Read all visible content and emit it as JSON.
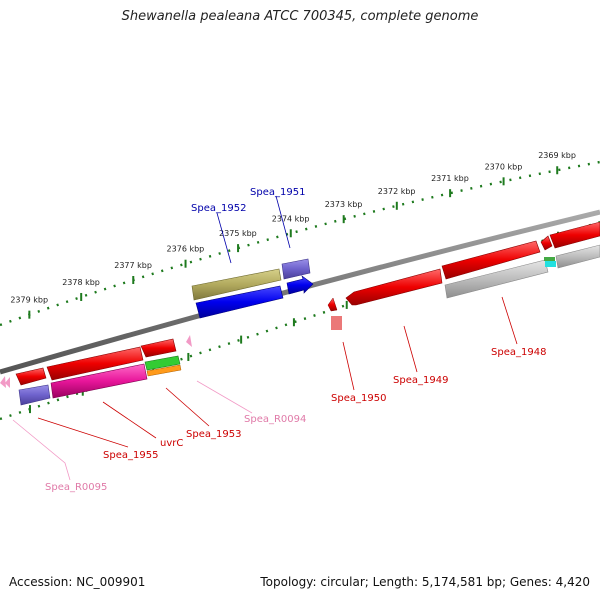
{
  "title": "Shewanella pealeana ATCC 700345, complete genome",
  "footer": {
    "accession": "Accession: NC_009901",
    "summary": "Topology: circular; Length: 5,174,581 bp; Genes: 4,420"
  },
  "scale": {
    "ticks": [
      "2369 kbp",
      "2370 kbp",
      "2371 kbp",
      "2372 kbp",
      "2373 kbp",
      "2374 kbp",
      "2375 kbp",
      "2376 kbp",
      "2377 kbp",
      "2378 kbp",
      "2379 kbp"
    ]
  },
  "features": [
    {
      "id": "Spea_1948",
      "label": "Spea_1948",
      "color": "#cc0000"
    },
    {
      "id": "Spea_1949",
      "label": "Spea_1949",
      "color": "#cc0000"
    },
    {
      "id": "Spea_1950",
      "label": "Spea_1950",
      "color": "#cc0000"
    },
    {
      "id": "Spea_1951",
      "label": "Spea_1951",
      "color": "#0000aa"
    },
    {
      "id": "Spea_1952",
      "label": "Spea_1952",
      "color": "#0000aa"
    },
    {
      "id": "Spea_1953",
      "label": "Spea_1953",
      "color": "#cc0000"
    },
    {
      "id": "uvrC",
      "label": "uvrC",
      "color": "#cc0000"
    },
    {
      "id": "Spea_1955",
      "label": "Spea_1955",
      "color": "#cc0000"
    },
    {
      "id": "Spea_R0094",
      "label": "Spea_R0094",
      "color": "#e07aa8"
    },
    {
      "id": "Spea_R0095",
      "label": "Spea_R0095",
      "color": "#e07aa8"
    }
  ]
}
